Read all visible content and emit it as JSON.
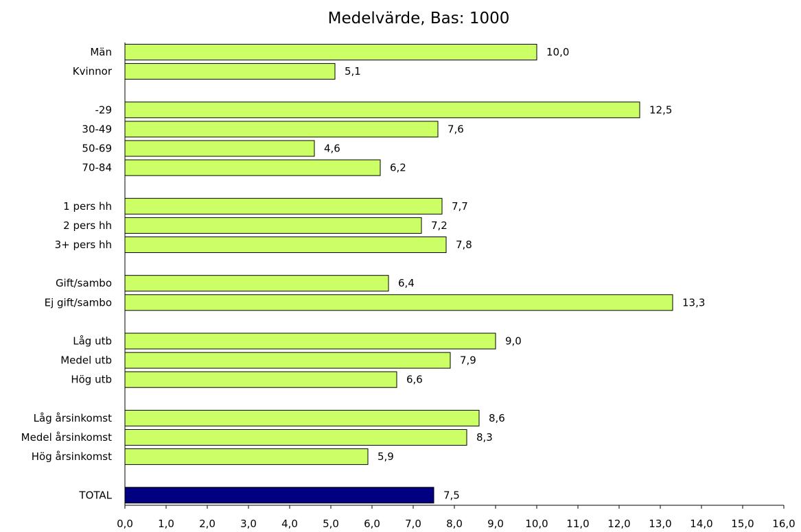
{
  "chart_data": {
    "type": "bar",
    "orientation": "horizontal",
    "title": "Medelvärde, Bas: 1000",
    "xlabel": "",
    "ylabel": "",
    "xlim": [
      0,
      16
    ],
    "x_ticks": [
      "0,0",
      "1,0",
      "2,0",
      "3,0",
      "4,0",
      "5,0",
      "6,0",
      "7,0",
      "8,0",
      "9,0",
      "10,0",
      "11,0",
      "12,0",
      "13,0",
      "14,0",
      "15,0",
      "16,0"
    ],
    "grid": false,
    "colors": {
      "bar": "#ccff66",
      "total_bar": "#000080",
      "border": "#000000"
    },
    "groups": [
      {
        "items": [
          {
            "label": "Män",
            "value": 10.0,
            "value_label": "10,0"
          },
          {
            "label": "Kvinnor",
            "value": 5.1,
            "value_label": "5,1"
          }
        ]
      },
      {
        "items": [
          {
            "label": "-29",
            "value": 12.5,
            "value_label": "12,5"
          },
          {
            "label": "30-49",
            "value": 7.6,
            "value_label": "7,6"
          },
          {
            "label": "50-69",
            "value": 4.6,
            "value_label": "4,6"
          },
          {
            "label": "70-84",
            "value": 6.2,
            "value_label": "6,2"
          }
        ]
      },
      {
        "items": [
          {
            "label": "1 pers hh",
            "value": 7.7,
            "value_label": "7,7"
          },
          {
            "label": "2 pers hh",
            "value": 7.2,
            "value_label": "7,2"
          },
          {
            "label": "3+ pers hh",
            "value": 7.8,
            "value_label": "7,8"
          }
        ]
      },
      {
        "items": [
          {
            "label": "Gift/sambo",
            "value": 6.4,
            "value_label": "6,4"
          },
          {
            "label": "Ej gift/sambo",
            "value": 13.3,
            "value_label": "13,3"
          }
        ]
      },
      {
        "items": [
          {
            "label": "Låg utb",
            "value": 9.0,
            "value_label": "9,0"
          },
          {
            "label": "Medel utb",
            "value": 7.9,
            "value_label": "7,9"
          },
          {
            "label": "Hög utb",
            "value": 6.6,
            "value_label": "6,6"
          }
        ]
      },
      {
        "items": [
          {
            "label": "Låg årsinkomst",
            "value": 8.6,
            "value_label": "8,6"
          },
          {
            "label": "Medel årsinkomst",
            "value": 8.3,
            "value_label": "8,3"
          },
          {
            "label": "Hög årsinkomst",
            "value": 5.9,
            "value_label": "5,9"
          }
        ]
      },
      {
        "items": [
          {
            "label": "TOTAL",
            "value": 7.5,
            "value_label": "7,5",
            "total": true
          }
        ]
      }
    ]
  }
}
